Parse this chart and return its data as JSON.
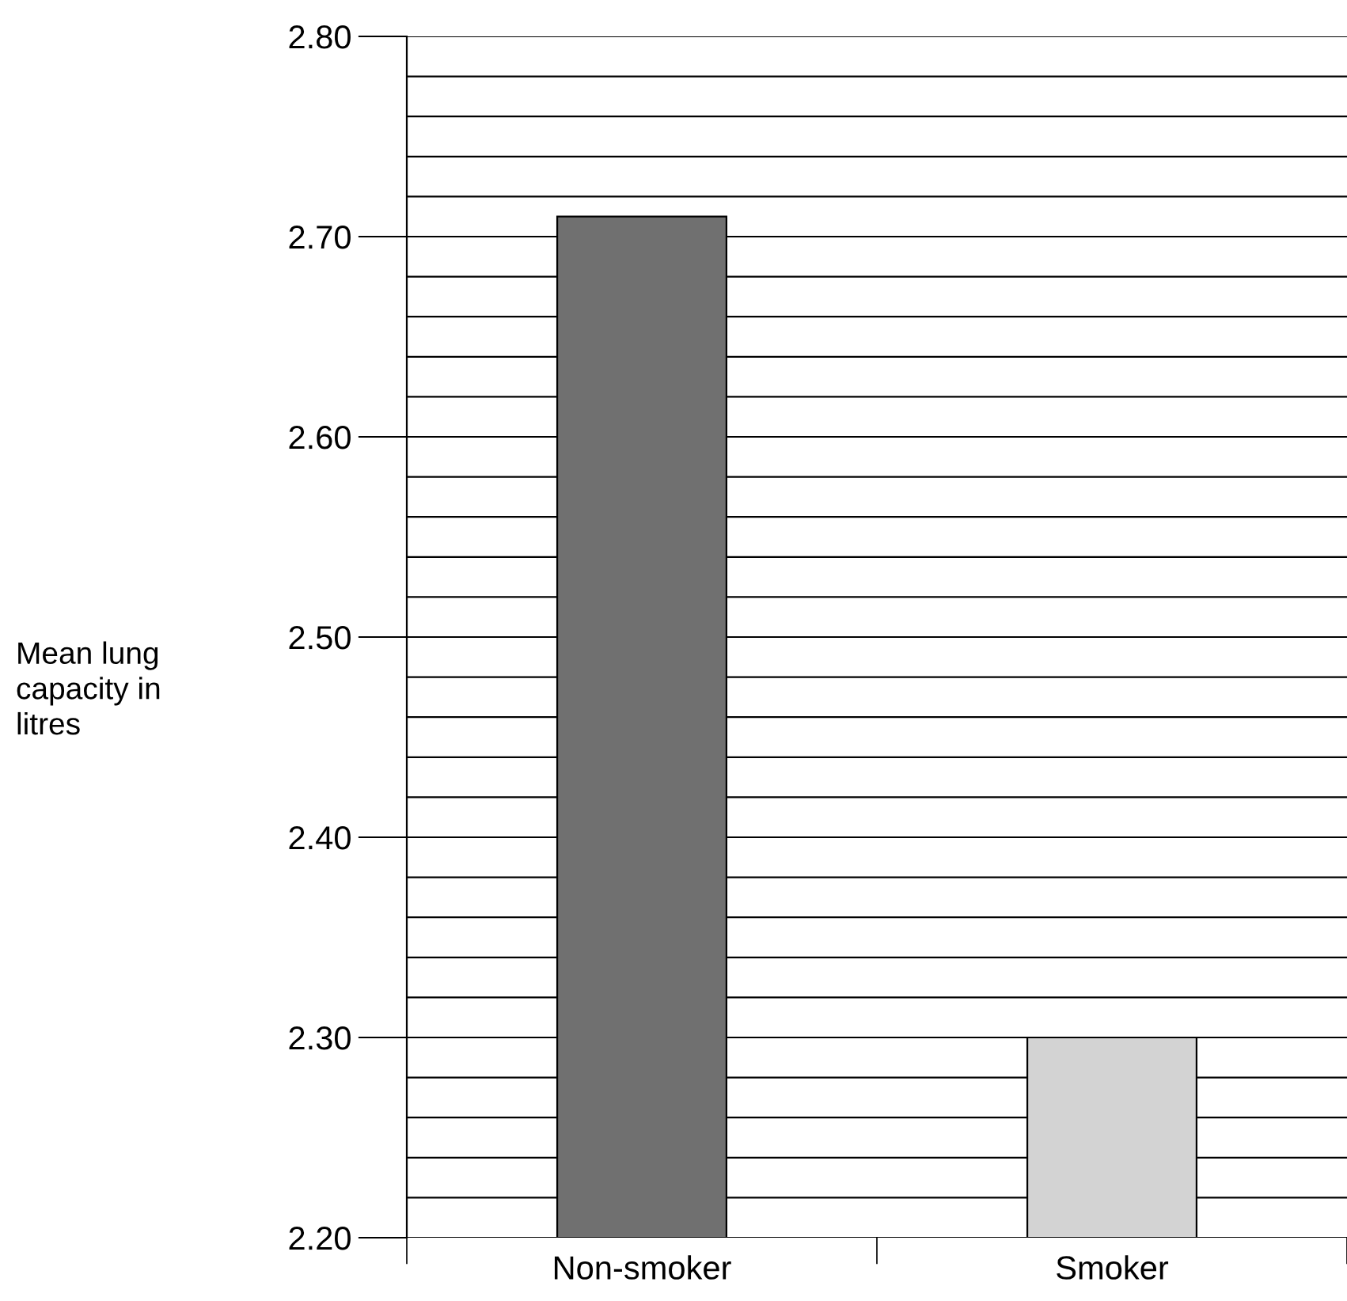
{
  "chart_data": {
    "type": "bar",
    "ylabel": "Mean lung\ncapacity in\nlitres",
    "categories": [
      "Non-smoker",
      "Smoker"
    ],
    "values": [
      2.71,
      2.3
    ],
    "colors": [
      "#707070",
      "#d3d3d3"
    ],
    "ylim": [
      2.2,
      2.8
    ],
    "yticks": [
      {
        "value": 2.2,
        "label": "2.20"
      },
      {
        "value": 2.22,
        "label": null
      },
      {
        "value": 2.24,
        "label": null
      },
      {
        "value": 2.26,
        "label": null
      },
      {
        "value": 2.28,
        "label": null
      },
      {
        "value": 2.3,
        "label": "2.30"
      },
      {
        "value": 2.32,
        "label": null
      },
      {
        "value": 2.34,
        "label": null
      },
      {
        "value": 2.36,
        "label": null
      },
      {
        "value": 2.38,
        "label": null
      },
      {
        "value": 2.4,
        "label": "2.40"
      },
      {
        "value": 2.42,
        "label": null
      },
      {
        "value": 2.44,
        "label": null
      },
      {
        "value": 2.46,
        "label": null
      },
      {
        "value": 2.48,
        "label": null
      },
      {
        "value": 2.5,
        "label": "2.50"
      },
      {
        "value": 2.52,
        "label": null
      },
      {
        "value": 2.54,
        "label": null
      },
      {
        "value": 2.56,
        "label": null
      },
      {
        "value": 2.58,
        "label": null
      },
      {
        "value": 2.6,
        "label": "2.60"
      },
      {
        "value": 2.62,
        "label": null
      },
      {
        "value": 2.64,
        "label": null
      },
      {
        "value": 2.66,
        "label": null
      },
      {
        "value": 2.68,
        "label": null
      },
      {
        "value": 2.7,
        "label": "2.70"
      },
      {
        "value": 2.72,
        "label": null
      },
      {
        "value": 2.74,
        "label": null
      },
      {
        "value": 2.76,
        "label": null
      },
      {
        "value": 2.78,
        "label": null
      },
      {
        "value": 2.8,
        "label": "2.80"
      }
    ],
    "grid": "y"
  }
}
